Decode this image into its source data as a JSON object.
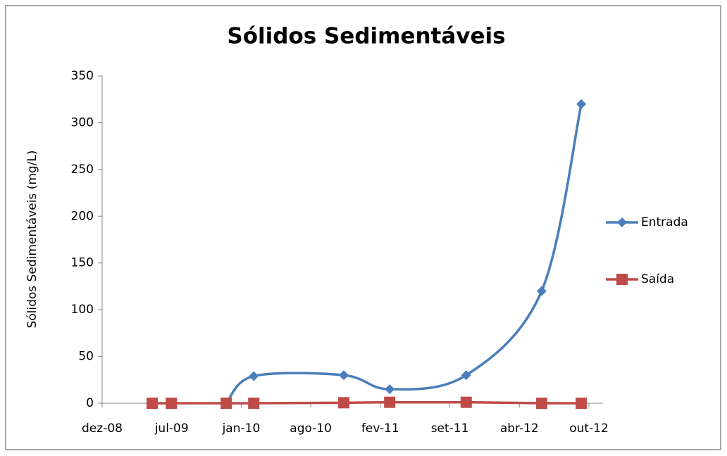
{
  "chart_data": {
    "type": "line",
    "title": "Sólidos Sedimentáveis",
    "y_label": "Sólidos Sedimentáveis (mg/L)",
    "x": [
      39944,
      39999,
      40157,
      40236,
      40495,
      40627,
      40847,
      41064,
      41178
    ],
    "series": [
      {
        "name": "Entrada",
        "color": "#4a7ebb",
        "marker": "diamond",
        "smooth": true,
        "values": [
          null,
          null,
          0,
          29,
          30,
          15,
          30,
          120,
          320
        ]
      },
      {
        "name": "Saída",
        "color": "#be4b48",
        "marker": "square",
        "smooth": false,
        "values": [
          0,
          0,
          0,
          0,
          0.5,
          1,
          1,
          0,
          0
        ]
      }
    ],
    "xlim": [
      39800,
      41200
    ],
    "xticks": [
      {
        "value": 39800,
        "label": "dez-08"
      },
      {
        "value": 40000,
        "label": "jul-09"
      },
      {
        "value": 40200,
        "label": "jan-10"
      },
      {
        "value": 40400,
        "label": "ago-10"
      },
      {
        "value": 40600,
        "label": "fev-11"
      },
      {
        "value": 40800,
        "label": "set-11"
      },
      {
        "value": 41000,
        "label": "abr-12"
      },
      {
        "value": 41200,
        "label": "out-12"
      }
    ],
    "ylim": [
      0,
      350
    ],
    "yticks": [
      0,
      50,
      100,
      150,
      200,
      250,
      300,
      350
    ],
    "grid": false,
    "legend": "right"
  }
}
